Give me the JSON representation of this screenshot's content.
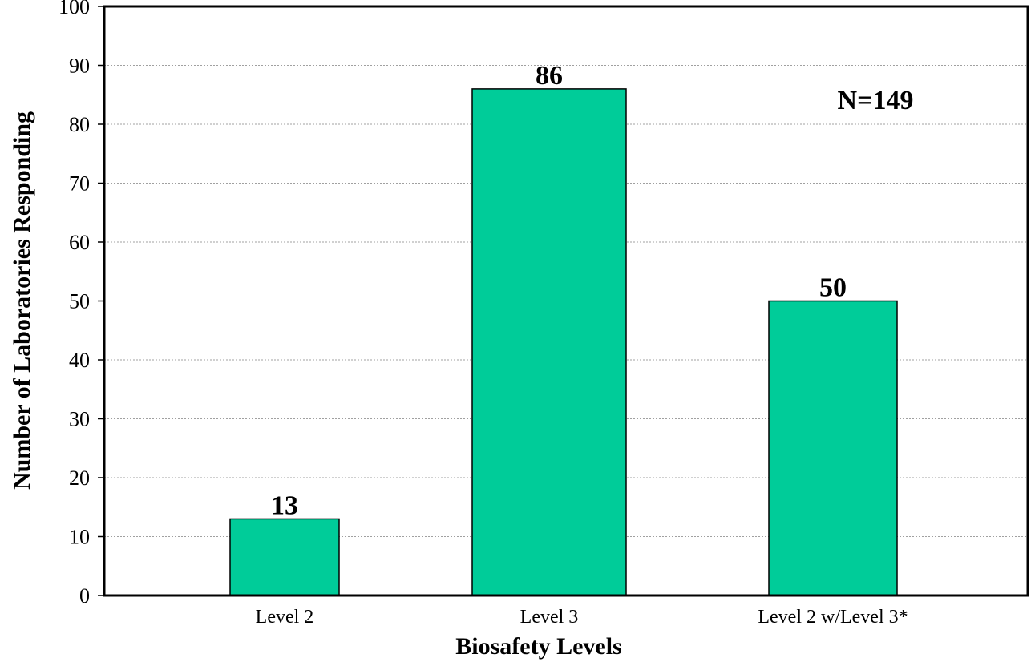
{
  "chart_data": {
    "type": "bar",
    "categories": [
      "Level 2",
      "Level 3",
      "Level 2 w/Level 3*"
    ],
    "values": [
      13,
      86,
      50
    ],
    "data_labels": [
      "13",
      "86",
      "50"
    ],
    "title": "",
    "xlabel": "Biosafety Levels",
    "ylabel": "Number of Laboratories Responding",
    "ylim": [
      0,
      100
    ],
    "yticks": [
      0,
      10,
      20,
      30,
      40,
      50,
      60,
      70,
      80,
      90,
      100
    ],
    "ytick_labels": [
      "0",
      "10",
      "20",
      "30",
      "40",
      "50",
      "60",
      "70",
      "80",
      "90",
      "100"
    ],
    "grid": "horizontal dotted",
    "legend": "none",
    "annotation": "N=149",
    "colors": {
      "bar_fill": "#00CC99",
      "bar_stroke": "#000000",
      "grid": "#A0A0A0",
      "axis": "#000000"
    }
  }
}
